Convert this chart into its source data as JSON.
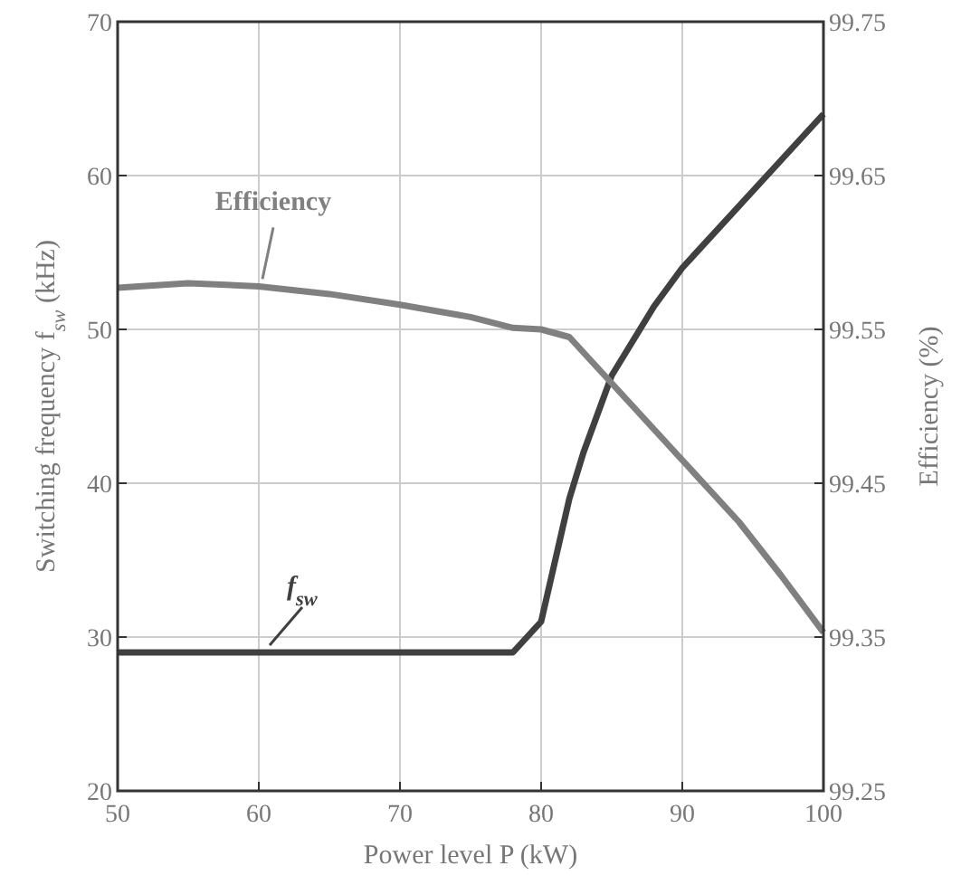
{
  "chart_data": {
    "type": "line",
    "xlabel": "Power level P (kW)",
    "ylabel": "Switching frequency f$_{sw}$ (kHz)",
    "y2label": "Efficiency (%)",
    "xlim": [
      50,
      100
    ],
    "xticks": [
      50,
      60,
      70,
      80,
      90,
      100
    ],
    "ylim": [
      20,
      70
    ],
    "yticks": [
      20,
      30,
      40,
      50,
      60,
      70
    ],
    "y2lim": [
      99.25,
      99.75
    ],
    "y2ticks": [
      99.25,
      99.35,
      99.45,
      99.55,
      99.65,
      99.75
    ],
    "grid": true,
    "series": [
      {
        "name": "f$_{sw}$",
        "color": "#404040",
        "x": [
          50,
          60,
          70,
          78,
          80,
          82,
          83,
          84,
          85,
          88,
          90,
          95,
          100
        ],
        "values": [
          29,
          29,
          29,
          29,
          31,
          39,
          42,
          44.5,
          47,
          51.5,
          54,
          59,
          64
        ]
      },
      {
        "name": "Efficiency",
        "color": "#808080",
        "axis": "y2",
        "x": [
          50,
          55,
          60,
          65,
          70,
          75,
          78,
          80,
          82,
          84,
          86,
          88,
          90,
          94,
          97,
          100
        ],
        "values": [
          99.577,
          99.58,
          99.578,
          99.573,
          99.566,
          99.558,
          99.551,
          99.55,
          99.545,
          99.525,
          99.505,
          99.485,
          99.465,
          99.425,
          99.39,
          99.353
        ]
      }
    ]
  }
}
